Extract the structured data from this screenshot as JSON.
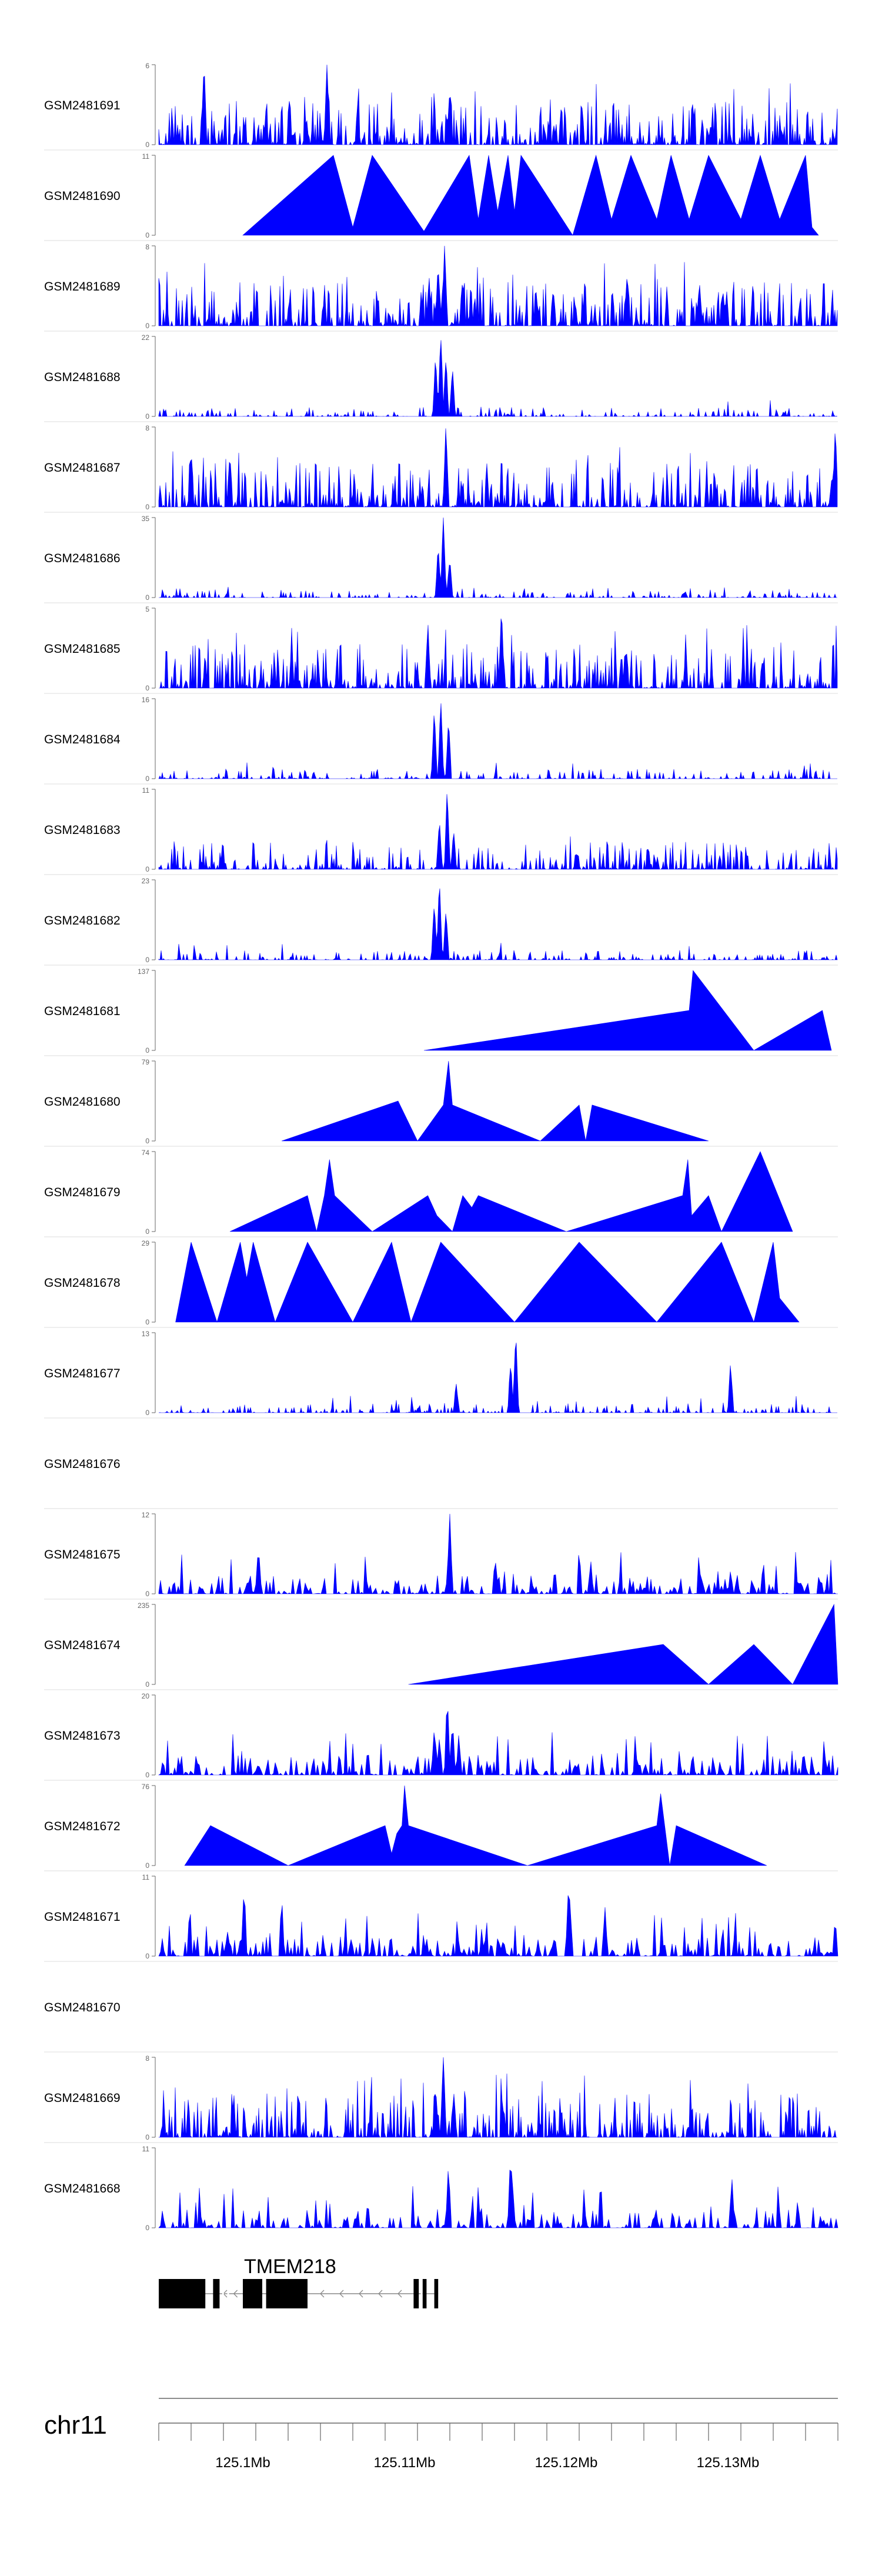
{
  "chart_data": {
    "type": "area",
    "title": "",
    "genomic_range": [
      125086000,
      125138500
    ],
    "tracks": [
      {
        "name": "GSM2481691",
        "ymax": "6",
        "ymin": "0",
        "pattern": "dense",
        "seed": 11,
        "peaks": [
          [
            125089500,
            1.0
          ],
          [
            125099000,
            1.0
          ],
          [
            125108500,
            0.7
          ]
        ]
      },
      {
        "name": "GSM2481690",
        "ymax": "11",
        "ymin": "0",
        "pattern": "triangles",
        "seed": 12,
        "peaks": [
          [
            125092500,
            0.0
          ],
          [
            125099500,
            1.0
          ],
          [
            125101000,
            0.1
          ],
          [
            125102500,
            1.0
          ],
          [
            125106500,
            0.05
          ],
          [
            125110000,
            1.0
          ],
          [
            125110700,
            0.2
          ],
          [
            125111500,
            1.0
          ],
          [
            125112200,
            0.3
          ],
          [
            125113000,
            1.0
          ],
          [
            125113500,
            0.3
          ],
          [
            125114000,
            1.0
          ],
          [
            125118000,
            0.0
          ],
          [
            125119800,
            1.0
          ],
          [
            125121000,
            0.2
          ],
          [
            125122500,
            1.0
          ],
          [
            125124500,
            0.2
          ],
          [
            125125600,
            1.0
          ],
          [
            125127000,
            0.2
          ],
          [
            125128500,
            1.0
          ],
          [
            125131000,
            0.2
          ],
          [
            125132500,
            1.0
          ],
          [
            125134000,
            0.2
          ],
          [
            125136000,
            1.0
          ],
          [
            125136500,
            0.1
          ],
          [
            125137000,
            0.0
          ]
        ]
      },
      {
        "name": "GSM2481689",
        "ymax": "8",
        "ymin": "0",
        "pattern": "dense",
        "seed": 13,
        "peaks": [
          [
            125106900,
            0.55
          ],
          [
            125107600,
            0.75
          ],
          [
            125108100,
            1.0
          ],
          [
            125116500,
            0.45
          ],
          [
            125127800,
            0.55
          ]
        ]
      },
      {
        "name": "GSM2481688",
        "ymax": "22",
        "ymin": "0",
        "pattern": "sparse",
        "seed": 14,
        "peaks": [
          [
            125107400,
            0.75
          ],
          [
            125107800,
            1.0
          ],
          [
            125108200,
            0.7
          ],
          [
            125108700,
            0.6
          ]
        ]
      },
      {
        "name": "GSM2481687",
        "ymax": "8",
        "ymin": "0",
        "pattern": "dense",
        "seed": 15,
        "peaks": [
          [
            125088500,
            0.7
          ],
          [
            125091500,
            0.65
          ],
          [
            125108200,
            1.0
          ],
          [
            125138300,
            1.0
          ]
        ]
      },
      {
        "name": "GSM2481686",
        "ymax": "35",
        "ymin": "0",
        "pattern": "sparse",
        "seed": 16,
        "peaks": [
          [
            125107600,
            0.65
          ],
          [
            125108000,
            1.0
          ],
          [
            125108500,
            0.45
          ]
        ]
      },
      {
        "name": "GSM2481685",
        "ymax": "5",
        "ymin": "0",
        "pattern": "dense",
        "seed": 17,
        "peaks": [
          [
            125112500,
            1.0
          ],
          [
            125106800,
            0.8
          ]
        ]
      },
      {
        "name": "GSM2481684",
        "ymax": "16",
        "ymin": "0",
        "pattern": "sparse",
        "seed": 18,
        "peaks": [
          [
            125107300,
            0.85
          ],
          [
            125107800,
            1.0
          ],
          [
            125108400,
            0.7
          ]
        ]
      },
      {
        "name": "GSM2481683",
        "ymax": "11",
        "ymin": "0",
        "pattern": "medium",
        "seed": 19,
        "peaks": [
          [
            125107700,
            0.55
          ],
          [
            125108300,
            1.0
          ],
          [
            125108800,
            0.45
          ]
        ]
      },
      {
        "name": "GSM2481682",
        "ymax": "23",
        "ymin": "0",
        "pattern": "sparse",
        "seed": 20,
        "peaks": [
          [
            125107300,
            0.7
          ],
          [
            125107700,
            1.0
          ],
          [
            125108200,
            0.6
          ]
        ]
      },
      {
        "name": "GSM2481681",
        "ymax": "137",
        "ymin": "0",
        "pattern": "triangles",
        "seed": 21,
        "peaks": [
          [
            125106500,
            0.0
          ],
          [
            125127000,
            0.5
          ],
          [
            125127300,
            1.0
          ],
          [
            125132000,
            0.0
          ],
          [
            125137300,
            0.5
          ],
          [
            125138000,
            0.0
          ]
        ]
      },
      {
        "name": "GSM2481680",
        "ymax": "79",
        "ymin": "0",
        "pattern": "triangles",
        "seed": 22,
        "peaks": [
          [
            125095500,
            0.0
          ],
          [
            125104500,
            0.5
          ],
          [
            125106000,
            0.0
          ],
          [
            125108000,
            0.45
          ],
          [
            125108400,
            1.0
          ],
          [
            125108700,
            0.45
          ],
          [
            125115500,
            0.0
          ],
          [
            125118500,
            0.45
          ],
          [
            125119000,
            0.0
          ],
          [
            125119500,
            0.45
          ],
          [
            125128500,
            0.0
          ]
        ]
      },
      {
        "name": "GSM2481679",
        "ymax": "74",
        "ymin": "0",
        "pattern": "triangles",
        "seed": 23,
        "peaks": [
          [
            125091500,
            0.0
          ],
          [
            125097500,
            0.45
          ],
          [
            125098200,
            0.0
          ],
          [
            125098800,
            0.45
          ],
          [
            125099200,
            0.9
          ],
          [
            125099600,
            0.45
          ],
          [
            125102500,
            0.0
          ],
          [
            125106800,
            0.45
          ],
          [
            125107500,
            0.2
          ],
          [
            125108700,
            0.0
          ],
          [
            125109500,
            0.45
          ],
          [
            125110200,
            0.3
          ],
          [
            125110700,
            0.45
          ],
          [
            125117500,
            0.0
          ],
          [
            125126500,
            0.45
          ],
          [
            125126900,
            0.9
          ],
          [
            125127200,
            0.2
          ],
          [
            125128500,
            0.45
          ],
          [
            125129500,
            0.0
          ],
          [
            125132500,
            1.0
          ],
          [
            125135000,
            0.0
          ]
        ]
      },
      {
        "name": "GSM2481678",
        "ymax": "29",
        "ymin": "0",
        "pattern": "triangles",
        "seed": 24,
        "peaks": [
          [
            125087300,
            0.0
          ],
          [
            125088500,
            1.0
          ],
          [
            125090500,
            0.0
          ],
          [
            125092300,
            1.0
          ],
          [
            125092800,
            0.55
          ],
          [
            125093300,
            1.0
          ],
          [
            125095000,
            0.0
          ],
          [
            125097500,
            1.0
          ],
          [
            125101000,
            0.0
          ],
          [
            125104000,
            1.0
          ],
          [
            125105500,
            0.0
          ],
          [
            125107800,
            1.0
          ],
          [
            125113500,
            0.0
          ],
          [
            125118500,
            1.0
          ],
          [
            125124500,
            0.0
          ],
          [
            125129500,
            1.0
          ],
          [
            125132000,
            0.0
          ],
          [
            125133500,
            1.0
          ],
          [
            125134000,
            0.3
          ],
          [
            125135500,
            0.0
          ]
        ]
      },
      {
        "name": "GSM2481677",
        "ymax": "13",
        "ymin": "0",
        "pattern": "sparse",
        "seed": 25,
        "peaks": [
          [
            125113200,
            0.6
          ],
          [
            125113600,
            1.0
          ],
          [
            125130200,
            0.6
          ],
          [
            125109000,
            0.35
          ]
        ]
      },
      {
        "name": "GSM2481676",
        "ymax": "",
        "ymin": "",
        "pattern": "empty",
        "seed": 26,
        "peaks": []
      },
      {
        "name": "GSM2481675",
        "ymax": "12",
        "ymin": "0",
        "pattern": "spikes",
        "seed": 27,
        "peaks": [
          [
            125108500,
            1.0
          ],
          [
            125093700,
            0.6
          ],
          [
            125112000,
            0.45
          ]
        ]
      },
      {
        "name": "GSM2481674",
        "ymax": "235",
        "ymin": "0",
        "pattern": "triangles",
        "seed": 28,
        "peaks": [
          [
            125105300,
            0.0
          ],
          [
            125125000,
            0.5
          ],
          [
            125128500,
            0.0
          ],
          [
            125132000,
            0.5
          ],
          [
            125135000,
            0.0
          ],
          [
            125138200,
            1.0
          ],
          [
            125138500,
            0.0
          ]
        ]
      },
      {
        "name": "GSM2481673",
        "ymax": "20",
        "ymin": "0",
        "pattern": "spikes",
        "seed": 29,
        "peaks": [
          [
            125107300,
            0.6
          ],
          [
            125107700,
            0.45
          ],
          [
            125108300,
            1.0
          ],
          [
            125108700,
            0.7
          ],
          [
            125109200,
            0.5
          ]
        ]
      },
      {
        "name": "GSM2481672",
        "ymax": "76",
        "ymin": "0",
        "pattern": "triangles",
        "seed": 30,
        "peaks": [
          [
            125088000,
            0.0
          ],
          [
            125090000,
            0.5
          ],
          [
            125096000,
            0.0
          ],
          [
            125103500,
            0.5
          ],
          [
            125104000,
            0.15
          ],
          [
            125104400,
            0.4
          ],
          [
            125104800,
            0.5
          ],
          [
            125105000,
            1.0
          ],
          [
            125105300,
            0.5
          ],
          [
            125114500,
            0.0
          ],
          [
            125124500,
            0.5
          ],
          [
            125124800,
            0.9
          ],
          [
            125125500,
            0.0
          ],
          [
            125126000,
            0.5
          ],
          [
            125133000,
            0.0
          ]
        ]
      },
      {
        "name": "GSM2481671",
        "ymax": "11",
        "ymin": "0",
        "pattern": "spikes",
        "seed": 31,
        "peaks": [
          [
            125117700,
            1.0
          ],
          [
            125092600,
            0.85
          ],
          [
            125095500,
            0.7
          ],
          [
            125120500,
            0.55
          ]
        ]
      },
      {
        "name": "GSM2481670",
        "ymax": "",
        "ymin": "",
        "pattern": "empty",
        "seed": 32,
        "peaks": []
      },
      {
        "name": "GSM2481669",
        "ymax": "8",
        "ymin": "0",
        "pattern": "dense",
        "seed": 33,
        "peaks": [
          [
            125107400,
            0.6
          ],
          [
            125108000,
            1.0
          ],
          [
            125108800,
            0.55
          ]
        ]
      },
      {
        "name": "GSM2481668",
        "ymax": "11",
        "ymin": "0",
        "pattern": "spikes",
        "seed": 34,
        "peaks": [
          [
            125113200,
            1.0
          ],
          [
            125108400,
            0.75
          ],
          [
            125130300,
            0.6
          ]
        ]
      }
    ],
    "gene": {
      "name": "TMEM218",
      "strand": "-",
      "intron": [
        125086000,
        125107600
      ],
      "exons": [
        [
          125086000,
          125089600
        ],
        [
          125090200,
          125090700
        ],
        [
          125092500,
          125094000
        ],
        [
          125094300,
          125097500
        ],
        [
          125105700,
          125106100
        ],
        [
          125106400,
          125106700
        ],
        [
          125107300,
          125107600
        ]
      ],
      "arrow_positions": [
        125091000,
        125091800,
        125098500,
        125100000,
        125101500,
        125103000,
        125104500
      ]
    },
    "chromosome": "chr11",
    "axis": {
      "ticks": [
        125086000,
        125088500,
        125091000,
        125093500,
        125096000,
        125098500,
        125101000,
        125103500,
        125106000,
        125108500,
        125111000,
        125113500,
        125116000,
        125118500,
        125121000,
        125123500,
        125126000,
        125128500,
        125131000,
        125133500,
        125136000,
        125138500
      ],
      "tick_labels": [
        {
          "pos": 125092500,
          "text": "125.1Mb"
        },
        {
          "pos": 125105000,
          "text": "125.11Mb"
        },
        {
          "pos": 125117500,
          "text": "125.12Mb"
        },
        {
          "pos": 125130000,
          "text": "125.13Mb"
        }
      ]
    },
    "colors": {
      "fill": "#0000FF",
      "gene": "#000000",
      "axis": "#666666",
      "text": "#000000",
      "sep": "#DDDDDD"
    }
  }
}
